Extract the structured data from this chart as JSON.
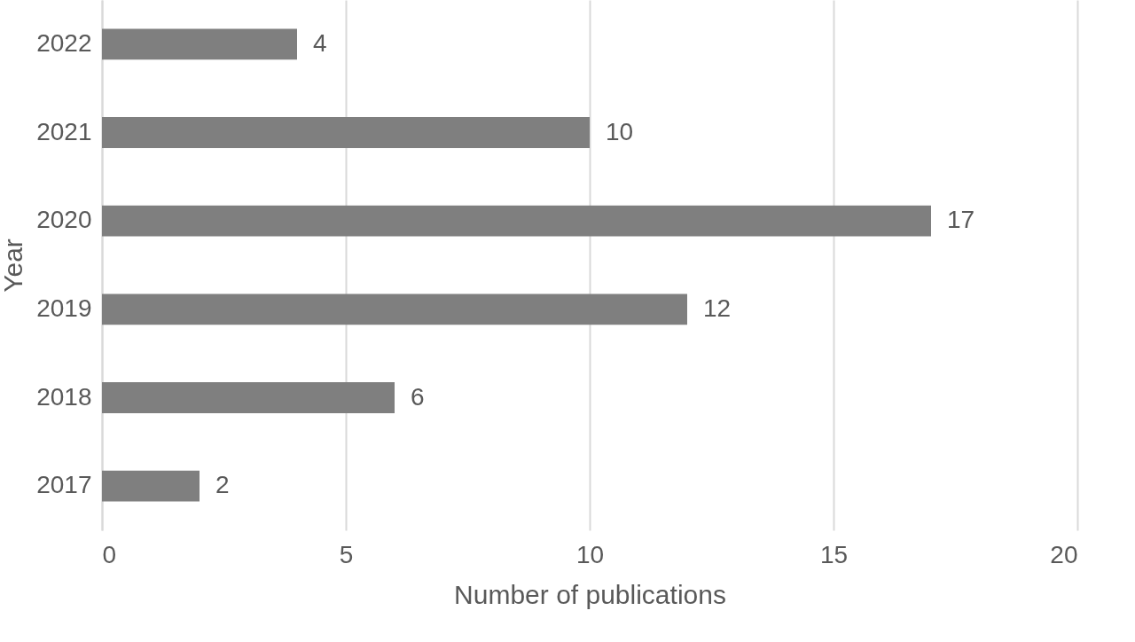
{
  "chart_data": {
    "type": "bar",
    "orientation": "horizontal",
    "xlabel": "Number of publications",
    "ylabel": "Year",
    "categories": [
      "2022",
      "2021",
      "2020",
      "2019",
      "2018",
      "2017"
    ],
    "values": [
      4,
      10,
      17,
      12,
      6,
      2
    ],
    "color": "#7f7f7f",
    "xlim": [
      0,
      20
    ],
    "xticks": [
      0,
      5,
      10,
      15,
      20
    ],
    "grid": "x",
    "data_labels": true
  }
}
